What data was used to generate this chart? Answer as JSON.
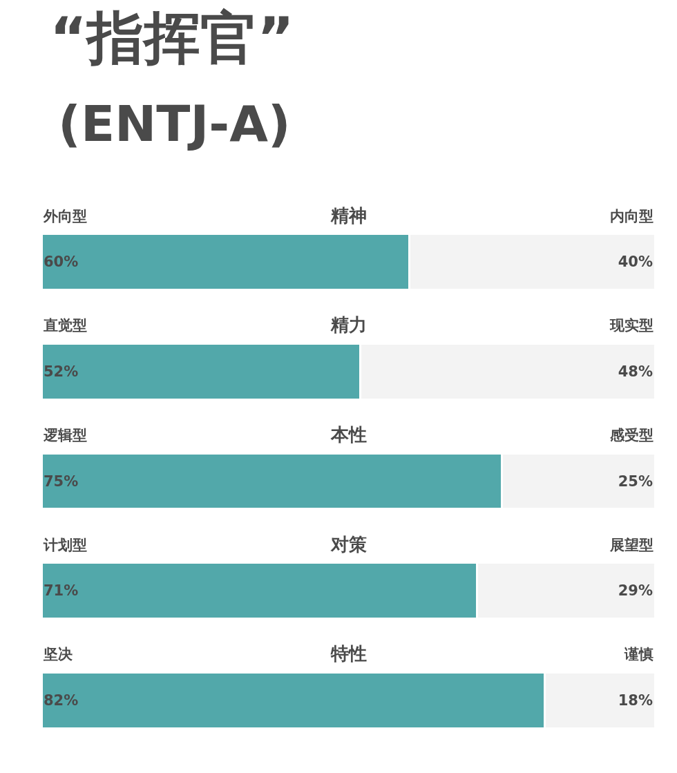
{
  "chart_data": {
    "type": "bar",
    "title": "“指挥官”",
    "subtitle": "(ENTJ-A)",
    "orientation": "horizontal",
    "stacked": true,
    "tick_labels": false,
    "categories": [
      "精神",
      "精力",
      "本性",
      "对策",
      "特性"
    ],
    "series": [
      {
        "name": null,
        "color": "#52a8aa",
        "values": [
          60,
          52,
          75,
          71,
          82
        ],
        "value_labels": [
          "60%",
          "52%",
          "75%",
          "71%",
          "82%"
        ]
      },
      {
        "name": null,
        "color": "#f3f3f3",
        "values": [
          40,
          48,
          25,
          29,
          18
        ],
        "value_labels": [
          "40%",
          "48%",
          "25%",
          "29%",
          "18%"
        ]
      }
    ],
    "annotations": [
      "外向型",
      "内向型",
      "直觉型",
      "现实型",
      "逻辑型",
      "感受型",
      "计划型",
      "展望型",
      "坚决",
      "谨慎"
    ]
  }
}
